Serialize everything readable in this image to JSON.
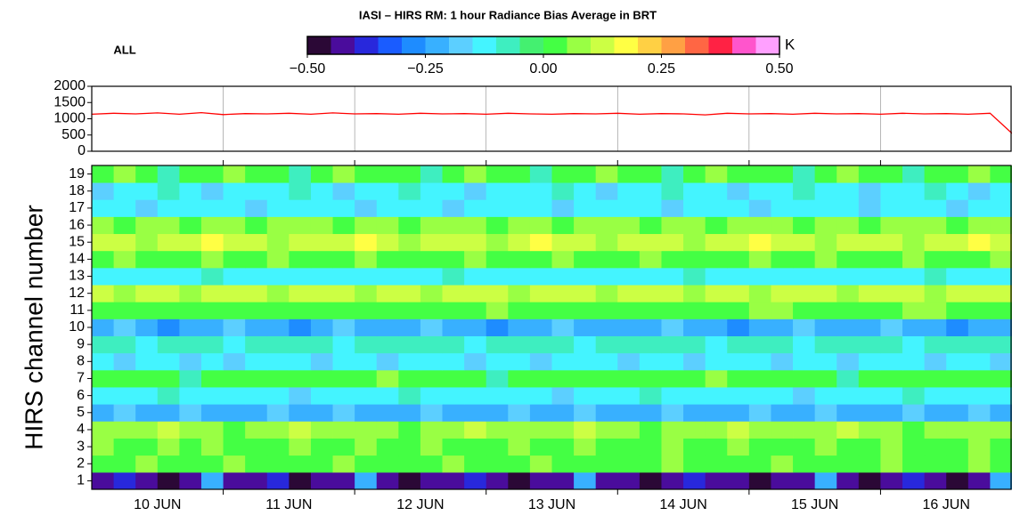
{
  "chart_data": [
    {
      "type": "colorbar",
      "title": "IASI – HIRS RM: 1 hour Radiance Bias Average in BRT",
      "label": "ALL",
      "unit": "K",
      "lim": [
        -0.5,
        0.5
      ],
      "colors": [
        "#2b0836",
        "#4a0c9c",
        "#2828dc",
        "#1a5cff",
        "#1e8cff",
        "#38b0ff",
        "#5ccfff",
        "#44f4ff",
        "#3eeec0",
        "#44f070",
        "#44ff44",
        "#99ff44",
        "#ccff44",
        "#ffff44",
        "#ffd044",
        "#ffa044",
        "#ff6644",
        "#ff2244",
        "#ff55cc",
        "#ffa0ff"
      ],
      "ticks": [
        {
          "value": -0.5,
          "label": "−0.50"
        },
        {
          "value": -0.25,
          "label": "−0.25"
        },
        {
          "value": 0,
          "label": "0.00"
        },
        {
          "value": 0.25,
          "label": "0.25"
        },
        {
          "value": 0.5,
          "label": "0.50"
        }
      ]
    },
    {
      "type": "line",
      "color": "#ff0000",
      "x": [
        0,
        4,
        8,
        12,
        16,
        20,
        24,
        28,
        32,
        36,
        40,
        44,
        48,
        52,
        56,
        60,
        64,
        68,
        72,
        76,
        80,
        84,
        88,
        92,
        96,
        100,
        104,
        108,
        112,
        116,
        120,
        124,
        128,
        132,
        136,
        140,
        144,
        148,
        152,
        156,
        160,
        164,
        168
      ],
      "values": [
        1140,
        1170,
        1150,
        1180,
        1140,
        1190,
        1130,
        1160,
        1150,
        1170,
        1140,
        1180,
        1150,
        1160,
        1140,
        1170,
        1150,
        1160,
        1140,
        1170,
        1150,
        1140,
        1160,
        1150,
        1170,
        1140,
        1160,
        1150,
        1120,
        1170,
        1150,
        1160,
        1140,
        1170,
        1150,
        1160,
        1140,
        1170,
        1150,
        1160,
        1140,
        1170,
        550
      ],
      "xlim": [
        0,
        168
      ],
      "xticks": [
        24,
        48,
        72,
        96,
        120,
        144
      ],
      "ylim": [
        0,
        2000
      ],
      "yticks": [
        0,
        500,
        1000,
        1500,
        2000
      ]
    },
    {
      "type": "heatmap",
      "ylabel": "HIRS channel number",
      "categories": [
        1,
        2,
        3,
        4,
        5,
        6,
        7,
        8,
        9,
        10,
        11,
        12,
        13,
        14,
        15,
        16,
        17,
        18,
        19
      ],
      "xbins": [
        0,
        4,
        8,
        12,
        16,
        20,
        24,
        28,
        32,
        36,
        40,
        44,
        48,
        52,
        56,
        60,
        64,
        68,
        72,
        76,
        80,
        84,
        88,
        92,
        96,
        100,
        104,
        108,
        112,
        116,
        120,
        124,
        128,
        132,
        136,
        140,
        144,
        148,
        152,
        156,
        160,
        164,
        168
      ],
      "xlim": [
        0,
        168
      ],
      "xticks": [
        24,
        48,
        72,
        96,
        120,
        144
      ],
      "day_labels": [
        {
          "value": 12,
          "label": "10 JUN"
        },
        {
          "value": 36,
          "label": "11 JUN"
        },
        {
          "value": 60,
          "label": "12 JUN"
        },
        {
          "value": 84,
          "label": "13 JUN"
        },
        {
          "value": 108,
          "label": "14 JUN"
        },
        {
          "value": 132,
          "label": "15 JUN"
        },
        {
          "value": 156,
          "label": "16 JUN"
        }
      ],
      "z": [
        [
          -0.42,
          -0.37,
          -0.42,
          -0.47,
          -0.42,
          -0.22,
          -0.42,
          -0.42,
          -0.37,
          -0.47,
          -0.42,
          -0.42,
          -0.22,
          -0.42,
          -0.47,
          -0.42,
          -0.42,
          -0.37,
          -0.42,
          -0.47,
          -0.42,
          -0.42,
          -0.22,
          -0.42,
          -0.42,
          -0.47,
          -0.42,
          -0.37,
          -0.42,
          -0.42,
          -0.47,
          -0.42,
          -0.42,
          -0.22,
          -0.42,
          -0.47,
          -0.42,
          -0.37,
          -0.42,
          -0.47,
          -0.42,
          -0.22
        ],
        [
          0.02,
          0.02,
          0.07,
          0.02,
          0.02,
          0.02,
          0.07,
          0.02,
          0.02,
          0.02,
          0.02,
          0.07,
          0.02,
          0.02,
          0.02,
          0.02,
          0.07,
          0.02,
          0.02,
          0.02,
          0.07,
          0.02,
          0.02,
          0.02,
          0.02,
          0.02,
          0.07,
          0.02,
          0.02,
          0.02,
          0.02,
          0.07,
          0.02,
          0.02,
          0.02,
          0.02,
          0.07,
          0.02,
          0.02,
          0.02,
          0.07,
          0.02
        ],
        [
          0.07,
          0.02,
          0.02,
          0.07,
          0.02,
          0.07,
          0.02,
          0.02,
          0.02,
          0.07,
          0.02,
          0.02,
          0.07,
          0.02,
          0.02,
          0.07,
          0.02,
          0.02,
          0.02,
          0.07,
          0.02,
          0.02,
          0.07,
          0.02,
          0.02,
          0.02,
          0.07,
          0.02,
          0.02,
          0.07,
          0.02,
          0.02,
          0.02,
          0.07,
          0.02,
          0.02,
          0.07,
          0.02,
          0.02,
          0.02,
          0.07,
          0.02
        ],
        [
          0.07,
          0.07,
          0.07,
          0.12,
          0.07,
          0.07,
          0.02,
          0.07,
          0.07,
          0.12,
          0.07,
          0.07,
          0.07,
          0.07,
          0.02,
          0.07,
          0.07,
          0.12,
          0.07,
          0.07,
          0.07,
          0.07,
          0.12,
          0.07,
          0.07,
          0.02,
          0.07,
          0.07,
          0.07,
          0.12,
          0.07,
          0.07,
          0.07,
          0.07,
          0.12,
          0.07,
          0.07,
          0.02,
          0.07,
          0.07,
          0.07,
          0.07
        ],
        [
          -0.22,
          -0.17,
          -0.22,
          -0.22,
          -0.17,
          -0.22,
          -0.22,
          -0.22,
          -0.17,
          -0.22,
          -0.22,
          -0.17,
          -0.22,
          -0.22,
          -0.22,
          -0.17,
          -0.22,
          -0.22,
          -0.22,
          -0.17,
          -0.22,
          -0.22,
          -0.17,
          -0.22,
          -0.22,
          -0.22,
          -0.17,
          -0.22,
          -0.22,
          -0.22,
          -0.17,
          -0.22,
          -0.22,
          -0.17,
          -0.22,
          -0.22,
          -0.22,
          -0.17,
          -0.22,
          -0.22,
          -0.17,
          -0.22
        ],
        [
          -0.12,
          -0.12,
          -0.12,
          -0.07,
          -0.12,
          -0.12,
          -0.12,
          -0.12,
          -0.12,
          -0.17,
          -0.12,
          -0.12,
          -0.12,
          -0.12,
          -0.07,
          -0.12,
          -0.12,
          -0.12,
          -0.12,
          -0.12,
          -0.12,
          -0.17,
          -0.12,
          -0.12,
          -0.12,
          -0.07,
          -0.12,
          -0.12,
          -0.12,
          -0.12,
          -0.12,
          -0.12,
          -0.17,
          -0.12,
          -0.12,
          -0.12,
          -0.12,
          -0.07,
          -0.12,
          -0.12,
          -0.12,
          -0.12
        ],
        [
          0.02,
          0.02,
          0.02,
          0.02,
          -0.07,
          0.02,
          0.02,
          0.02,
          0.02,
          0.02,
          0.02,
          0.02,
          0.02,
          0.07,
          0.02,
          0.02,
          0.02,
          0.02,
          -0.07,
          0.02,
          0.02,
          0.02,
          0.02,
          0.02,
          0.02,
          0.02,
          0.02,
          0.02,
          0.07,
          0.02,
          0.02,
          0.02,
          0.02,
          0.02,
          -0.07,
          0.02,
          0.02,
          0.02,
          0.02,
          0.02,
          0.02,
          0.02
        ],
        [
          -0.12,
          -0.17,
          -0.12,
          -0.12,
          -0.17,
          -0.12,
          -0.17,
          -0.12,
          -0.12,
          -0.12,
          -0.17,
          -0.12,
          -0.12,
          -0.17,
          -0.12,
          -0.12,
          -0.12,
          -0.17,
          -0.12,
          -0.12,
          -0.17,
          -0.12,
          -0.12,
          -0.12,
          -0.17,
          -0.12,
          -0.12,
          -0.17,
          -0.12,
          -0.12,
          -0.12,
          -0.17,
          -0.12,
          -0.12,
          -0.17,
          -0.12,
          -0.12,
          -0.12,
          -0.17,
          -0.12,
          -0.12,
          -0.17
        ],
        [
          -0.07,
          -0.07,
          -0.12,
          -0.07,
          -0.07,
          -0.07,
          -0.12,
          -0.07,
          -0.07,
          -0.07,
          -0.07,
          -0.12,
          -0.07,
          -0.07,
          -0.07,
          -0.07,
          -0.07,
          -0.12,
          -0.07,
          -0.07,
          -0.07,
          -0.07,
          -0.12,
          -0.07,
          -0.07,
          -0.07,
          -0.07,
          -0.07,
          -0.12,
          -0.07,
          -0.07,
          -0.07,
          -0.12,
          -0.07,
          -0.07,
          -0.07,
          -0.07,
          -0.12,
          -0.07,
          -0.07,
          -0.07,
          -0.07
        ],
        [
          -0.22,
          -0.17,
          -0.22,
          -0.27,
          -0.22,
          -0.22,
          -0.17,
          -0.22,
          -0.22,
          -0.27,
          -0.22,
          -0.17,
          -0.22,
          -0.22,
          -0.22,
          -0.17,
          -0.22,
          -0.22,
          -0.27,
          -0.22,
          -0.22,
          -0.17,
          -0.22,
          -0.22,
          -0.22,
          -0.22,
          -0.17,
          -0.22,
          -0.22,
          -0.27,
          -0.22,
          -0.22,
          -0.17,
          -0.22,
          -0.22,
          -0.22,
          -0.17,
          -0.22,
          -0.22,
          -0.27,
          -0.22,
          -0.22
        ],
        [
          0.02,
          0.02,
          0.02,
          0.02,
          0.02,
          0.02,
          0.02,
          0.02,
          0.02,
          0.02,
          0.02,
          0.02,
          0.02,
          0.02,
          0.02,
          0.02,
          0.02,
          0.02,
          0.07,
          0.02,
          0.02,
          0.02,
          0.02,
          0.02,
          0.02,
          0.02,
          0.02,
          0.02,
          0.02,
          0.02,
          0.07,
          0.07,
          0.02,
          0.02,
          0.02,
          0.02,
          0.02,
          0.07,
          0.07,
          0.02,
          0.02,
          0.02
        ],
        [
          0.12,
          0.07,
          0.12,
          0.12,
          0.07,
          0.12,
          0.12,
          0.12,
          0.07,
          0.12,
          0.12,
          0.12,
          0.07,
          0.12,
          0.12,
          0.07,
          0.12,
          0.12,
          0.12,
          0.07,
          0.12,
          0.12,
          0.12,
          0.07,
          0.12,
          0.12,
          0.12,
          0.07,
          0.12,
          0.12,
          0.07,
          0.12,
          0.12,
          0.12,
          0.07,
          0.12,
          0.12,
          0.12,
          0.07,
          0.12,
          0.12,
          0.12
        ],
        [
          -0.12,
          -0.12,
          -0.12,
          -0.12,
          -0.12,
          -0.07,
          -0.12,
          -0.12,
          -0.12,
          -0.12,
          -0.12,
          -0.12,
          -0.12,
          -0.12,
          -0.12,
          -0.12,
          -0.07,
          -0.12,
          -0.12,
          -0.12,
          -0.12,
          -0.12,
          -0.12,
          -0.12,
          -0.12,
          -0.12,
          -0.12,
          -0.07,
          -0.12,
          -0.12,
          -0.12,
          -0.12,
          -0.12,
          -0.12,
          -0.12,
          -0.12,
          -0.12,
          -0.12,
          -0.07,
          -0.12,
          -0.12,
          -0.12
        ],
        [
          0.02,
          0.07,
          0.02,
          0.02,
          0.02,
          0.07,
          0.02,
          0.02,
          0.07,
          0.02,
          0.02,
          0.02,
          0.07,
          0.02,
          0.02,
          0.02,
          0.02,
          0.07,
          0.02,
          0.02,
          0.02,
          0.07,
          0.02,
          0.02,
          0.02,
          0.07,
          0.02,
          0.02,
          0.02,
          0.02,
          0.07,
          0.02,
          0.02,
          0.07,
          0.02,
          0.02,
          0.02,
          0.07,
          0.02,
          0.02,
          0.02,
          0.07
        ],
        [
          0.12,
          0.12,
          0.07,
          0.12,
          0.12,
          0.17,
          0.12,
          0.12,
          0.07,
          0.12,
          0.12,
          0.12,
          0.17,
          0.12,
          0.07,
          0.12,
          0.12,
          0.12,
          0.07,
          0.12,
          0.17,
          0.12,
          0.12,
          0.07,
          0.12,
          0.12,
          0.12,
          0.07,
          0.12,
          0.12,
          0.17,
          0.12,
          0.12,
          0.07,
          0.12,
          0.12,
          0.12,
          0.07,
          0.12,
          0.12,
          0.17,
          0.12
        ],
        [
          0.07,
          0.02,
          0.07,
          0.07,
          0.02,
          0.07,
          0.07,
          0.02,
          0.07,
          0.07,
          0.07,
          0.02,
          0.07,
          0.07,
          0.02,
          0.07,
          0.07,
          0.07,
          0.02,
          0.07,
          0.07,
          0.02,
          0.07,
          0.07,
          0.07,
          0.02,
          0.07,
          0.07,
          0.02,
          0.07,
          0.07,
          0.07,
          0.02,
          0.07,
          0.07,
          0.02,
          0.07,
          0.07,
          0.07,
          0.02,
          0.07,
          0.07
        ],
        [
          -0.12,
          -0.12,
          -0.17,
          -0.12,
          -0.12,
          -0.12,
          -0.12,
          -0.17,
          -0.12,
          -0.12,
          -0.12,
          -0.12,
          -0.17,
          -0.12,
          -0.12,
          -0.12,
          -0.17,
          -0.12,
          -0.12,
          -0.12,
          -0.12,
          -0.17,
          -0.12,
          -0.12,
          -0.12,
          -0.12,
          -0.17,
          -0.12,
          -0.12,
          -0.12,
          -0.17,
          -0.12,
          -0.12,
          -0.12,
          -0.12,
          -0.17,
          -0.12,
          -0.12,
          -0.12,
          -0.17,
          -0.12,
          -0.12
        ],
        [
          -0.17,
          -0.12,
          -0.12,
          -0.07,
          -0.12,
          -0.17,
          -0.12,
          -0.12,
          -0.12,
          -0.07,
          -0.12,
          -0.17,
          -0.12,
          -0.12,
          -0.07,
          -0.12,
          -0.12,
          -0.17,
          -0.12,
          -0.12,
          -0.12,
          -0.07,
          -0.12,
          -0.17,
          -0.12,
          -0.12,
          -0.07,
          -0.12,
          -0.12,
          -0.17,
          -0.12,
          -0.12,
          -0.07,
          -0.12,
          -0.12,
          -0.17,
          -0.12,
          -0.12,
          -0.07,
          -0.12,
          -0.17,
          -0.12
        ],
        [
          0.02,
          0.07,
          0.02,
          -0.07,
          0.02,
          0.02,
          0.07,
          0.02,
          0.02,
          -0.07,
          0.02,
          0.07,
          0.02,
          0.02,
          0.02,
          -0.07,
          0.02,
          0.07,
          0.02,
          0.02,
          -0.07,
          0.02,
          0.02,
          0.07,
          0.02,
          0.02,
          -0.07,
          0.02,
          0.07,
          0.02,
          0.02,
          0.02,
          -0.07,
          0.02,
          0.07,
          0.02,
          0.02,
          -0.07,
          0.02,
          0.02,
          0.07,
          0.02
        ]
      ]
    }
  ]
}
